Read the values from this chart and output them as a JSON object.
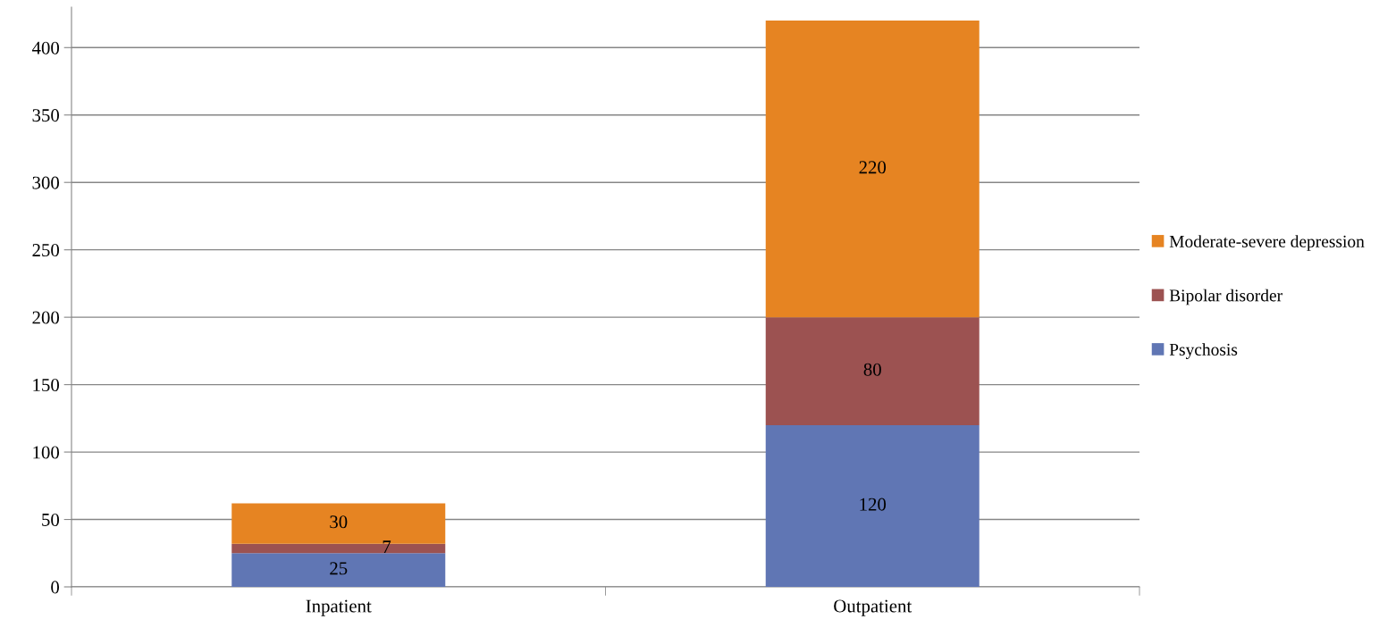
{
  "chart_data": {
    "type": "bar",
    "stacked": true,
    "categories": [
      "Inpatient",
      "Outpatient"
    ],
    "series": [
      {
        "name": "Psychosis",
        "color": "#6076b4",
        "values": [
          25,
          120
        ]
      },
      {
        "name": "Bipolar disorder",
        "color": "#9c5251",
        "values": [
          7,
          80
        ]
      },
      {
        "name": "Moderate-severe depression",
        "color": "#e68422",
        "values": [
          30,
          220
        ]
      }
    ],
    "ylim": [
      0,
      430
    ],
    "yticks": [
      0,
      50,
      100,
      150,
      200,
      250,
      300,
      350,
      400
    ],
    "grid": "y",
    "legend": "right",
    "data_labels": true
  }
}
